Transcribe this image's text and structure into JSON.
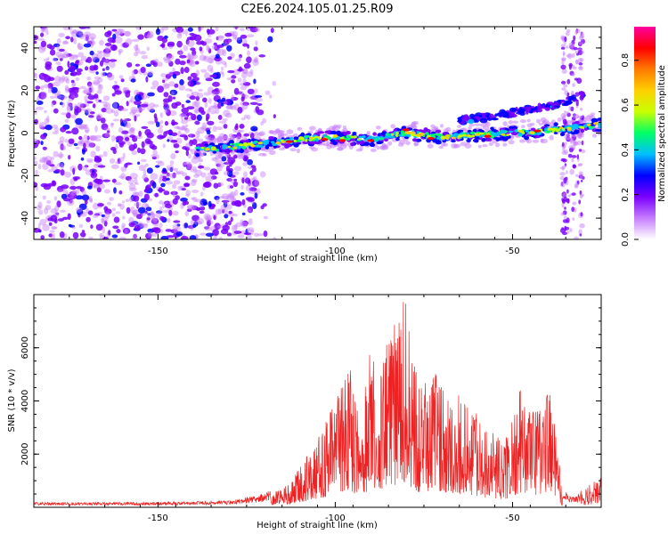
{
  "title": "C2E6.2024.105.01.25.R09",
  "colors": {
    "snr_line": "#ee2222",
    "colormap": [
      "#ffffff",
      "#c77dff",
      "#7a00ff",
      "#0000ff",
      "#00bfff",
      "#00ff66",
      "#c8ff00",
      "#ffd000",
      "#ff7a00",
      "#ff0000",
      "#ff00a0"
    ]
  },
  "chart_data": [
    {
      "type": "heatmap",
      "name": "spectrogram",
      "xlabel": "Height of straight line (km)",
      "ylabel": "Frequency (Hz)",
      "xlim": [
        -185,
        -25
      ],
      "ylim": [
        -50,
        50
      ],
      "x_ticks": [
        -150,
        -100,
        -50
      ],
      "y_ticks": [
        -40,
        -20,
        0,
        20,
        40
      ],
      "colorbar": {
        "label": "Normalized spectral amplitude",
        "range": [
          0.0,
          0.95
        ],
        "ticks": [
          0.0,
          0.2,
          0.4,
          0.6,
          0.8
        ]
      },
      "ridge": {
        "x": [
          -140,
          -120,
          -110,
          -100,
          -90,
          -80,
          -70,
          -60,
          -50,
          -40,
          -30,
          -25
        ],
        "y": [
          -8,
          -5,
          -3,
          -2,
          -3,
          0,
          -2,
          -1,
          0,
          1,
          3,
          4
        ]
      },
      "branch": {
        "x": [
          -65,
          -55,
          -45,
          -38,
          -30
        ],
        "y": [
          6,
          8,
          11,
          13,
          18
        ]
      },
      "noise_region_x": [
        -185,
        -122
      ],
      "noise_band_x": [
        -36,
        -30
      ]
    },
    {
      "type": "line",
      "name": "snr",
      "xlabel": "Height of straight line (km)",
      "ylabel": "SNR (10 * v/v)",
      "xlim": [
        -185,
        -25
      ],
      "ylim": [
        0,
        8000
      ],
      "x_ticks": [
        -150,
        -100,
        -50
      ],
      "y_ticks": [
        2000,
        4000,
        6000
      ],
      "envelope": {
        "x": [
          -185,
          -150,
          -130,
          -120,
          -115,
          -110,
          -105,
          -100,
          -96,
          -93,
          -90,
          -88,
          -85,
          -82,
          -80,
          -78,
          -76,
          -72,
          -68,
          -64,
          -60,
          -56,
          -52,
          -48,
          -44,
          -40,
          -38,
          -36,
          -32,
          -28,
          -25
        ],
        "y": [
          150,
          150,
          200,
          400,
          700,
          1500,
          2500,
          4000,
          5500,
          3000,
          6000,
          4500,
          6500,
          7000,
          8000,
          5500,
          4500,
          5000,
          4500,
          4000,
          3500,
          2800,
          2500,
          4400,
          3500,
          4500,
          3500,
          500,
          300,
          900,
          1300
        ]
      }
    }
  ]
}
